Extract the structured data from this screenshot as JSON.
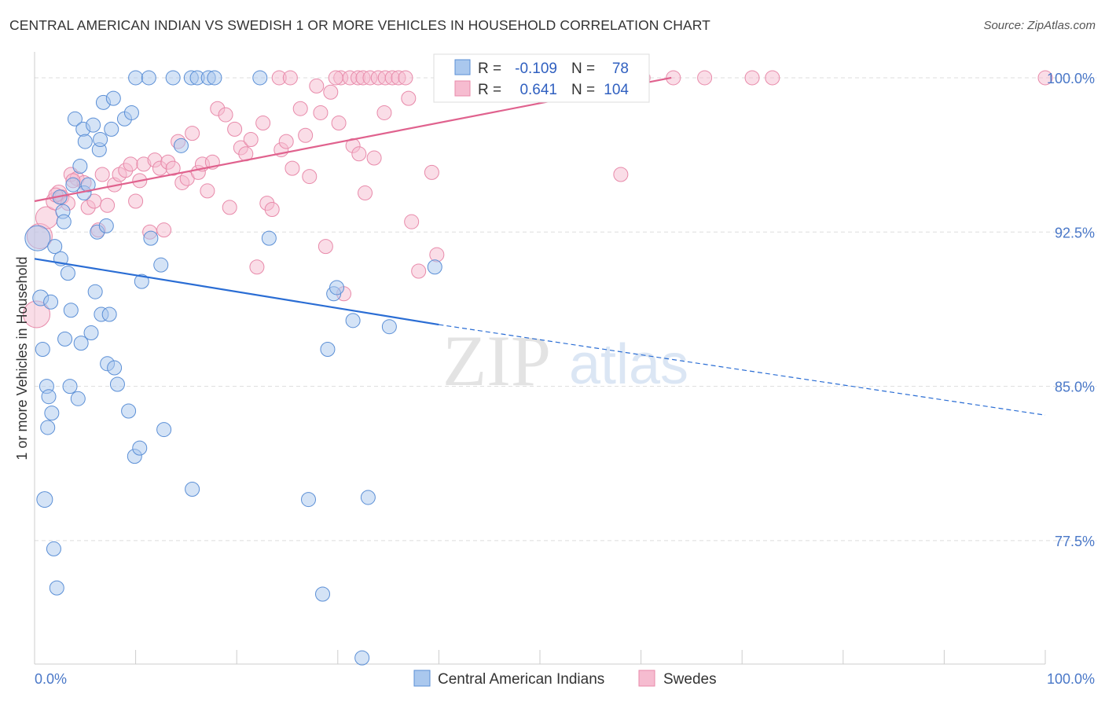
{
  "title": "CENTRAL AMERICAN INDIAN VS SWEDISH 1 OR MORE VEHICLES IN HOUSEHOLD CORRELATION CHART",
  "source": "Source: ZipAtlas.com",
  "watermark": {
    "zip": "ZIP",
    "atlas": "atlas"
  },
  "colors": {
    "blue_fill": "#aac8ee",
    "blue_stroke": "#5b8fd6",
    "blue_line": "#2a6dd4",
    "pink_fill": "#f6bcd0",
    "pink_stroke": "#e88aaa",
    "pink_line": "#e0628e",
    "grid": "#dddddd",
    "tick_text": "#4a78c8"
  },
  "stats_box": {
    "rows": [
      {
        "r_label": "R =",
        "r_value": "-0.109",
        "n_label": "N =",
        "n_value": "78"
      },
      {
        "r_label": "R =",
        "r_value": "0.641",
        "n_label": "N =",
        "n_value": "104"
      }
    ]
  },
  "legend": [
    {
      "label": "Central American Indians"
    },
    {
      "label": "Swedes"
    }
  ],
  "chart_data": {
    "type": "scatter",
    "ylabel": "1 or more Vehicles in Household",
    "xlabel": "",
    "xlim": [
      0,
      100
    ],
    "ylim": [
      71.5,
      100.8
    ],
    "x_tick_labels": {
      "min": "0.0%",
      "max": "100.0%"
    },
    "y_ticks": [
      {
        "value": 100.0,
        "label": "100.0%"
      },
      {
        "value": 92.5,
        "label": "92.5%"
      },
      {
        "value": 85.0,
        "label": "85.0%"
      },
      {
        "value": 77.5,
        "label": "77.5%"
      }
    ],
    "grid": true,
    "legend_position": "bottom-center",
    "series": [
      {
        "name": "Central American Indians",
        "color": "blue",
        "trend": {
          "x": [
            0,
            40
          ],
          "y": [
            91.2,
            88.0
          ],
          "dashed_to": [
            100,
            83.6
          ]
        },
        "points": [
          [
            0.3,
            92.2,
            16
          ],
          [
            0.6,
            89.3,
            10
          ],
          [
            0.8,
            86.8,
            9
          ],
          [
            1.0,
            79.5,
            10
          ],
          [
            1.2,
            85.0,
            9
          ],
          [
            1.3,
            83.0,
            9
          ],
          [
            1.4,
            84.5,
            9
          ],
          [
            1.6,
            89.1,
            9
          ],
          [
            1.7,
            83.7,
            9
          ],
          [
            1.9,
            77.1,
            9
          ],
          [
            2.0,
            91.8,
            9
          ],
          [
            2.2,
            75.2,
            9
          ],
          [
            2.5,
            94.2,
            9
          ],
          [
            2.6,
            91.2,
            9
          ],
          [
            2.8,
            93.5,
            9
          ],
          [
            2.9,
            93.0,
            9
          ],
          [
            3.0,
            87.3,
            9
          ],
          [
            3.3,
            90.5,
            9
          ],
          [
            3.5,
            85.0,
            9
          ],
          [
            3.6,
            88.7,
            9
          ],
          [
            3.8,
            94.8,
            9
          ],
          [
            4.0,
            98.0,
            9
          ],
          [
            4.3,
            84.4,
            9
          ],
          [
            4.5,
            95.7,
            9
          ],
          [
            4.6,
            87.1,
            9
          ],
          [
            4.8,
            97.5,
            9
          ],
          [
            4.9,
            94.4,
            9
          ],
          [
            5.0,
            96.9,
            9
          ],
          [
            5.3,
            94.8,
            9
          ],
          [
            5.6,
            87.6,
            9
          ],
          [
            5.8,
            97.7,
            9
          ],
          [
            6.0,
            89.6,
            9
          ],
          [
            6.2,
            92.5,
            9
          ],
          [
            6.4,
            96.5,
            9
          ],
          [
            6.5,
            97.0,
            9
          ],
          [
            6.6,
            88.5,
            9
          ],
          [
            6.8,
            98.8,
            9
          ],
          [
            7.1,
            92.8,
            9
          ],
          [
            7.2,
            86.1,
            9
          ],
          [
            7.4,
            88.5,
            9
          ],
          [
            7.6,
            97.5,
            9
          ],
          [
            7.8,
            99.0,
            9
          ],
          [
            7.9,
            85.9,
            9
          ],
          [
            8.2,
            85.1,
            9
          ],
          [
            8.9,
            98.0,
            9
          ],
          [
            9.3,
            83.8,
            9
          ],
          [
            9.6,
            98.3,
            9
          ],
          [
            9.9,
            81.6,
            9
          ],
          [
            10.0,
            100.0,
            9
          ],
          [
            10.4,
            82.0,
            9
          ],
          [
            10.6,
            90.1,
            9
          ],
          [
            11.3,
            100.0,
            9
          ],
          [
            11.5,
            92.2,
            9
          ],
          [
            12.5,
            90.9,
            9
          ],
          [
            12.8,
            82.9,
            9
          ],
          [
            13.7,
            100.0,
            9
          ],
          [
            14.5,
            96.7,
            9
          ],
          [
            15.5,
            100.0,
            9
          ],
          [
            15.6,
            80.0,
            9
          ],
          [
            16.1,
            100.0,
            9
          ],
          [
            17.2,
            100.0,
            9
          ],
          [
            17.8,
            100.0,
            9
          ],
          [
            22.3,
            100.0,
            9
          ],
          [
            23.2,
            92.2,
            9
          ],
          [
            27.1,
            79.5,
            9
          ],
          [
            28.5,
            74.9,
            9
          ],
          [
            29.0,
            86.8,
            9
          ],
          [
            29.6,
            89.5,
            9
          ],
          [
            29.9,
            89.8,
            9
          ],
          [
            31.5,
            88.2,
            9
          ],
          [
            32.4,
            71.8,
            9
          ],
          [
            33.0,
            79.6,
            9
          ],
          [
            35.1,
            87.9,
            9
          ],
          [
            39.6,
            90.8,
            9
          ],
          [
            40.5,
            100.0,
            9
          ],
          [
            41.0,
            100.0,
            9
          ],
          [
            41.5,
            100.0,
            9
          ],
          [
            42.0,
            100.0,
            9
          ]
        ]
      },
      {
        "name": "Swedes",
        "color": "pink",
        "trend": {
          "x": [
            0,
            63
          ],
          "y": [
            94.0,
            100.0
          ]
        },
        "points": [
          [
            0.2,
            88.5,
            17
          ],
          [
            0.5,
            92.3,
            16
          ],
          [
            1.2,
            93.2,
            14
          ],
          [
            2.0,
            94.0,
            11
          ],
          [
            2.4,
            94.4,
            10
          ],
          [
            2.7,
            94.2,
            9
          ],
          [
            3.3,
            93.9,
            9
          ],
          [
            3.6,
            95.3,
            9
          ],
          [
            4.2,
            95.1,
            9
          ],
          [
            4.9,
            94.9,
            9
          ],
          [
            5.3,
            93.7,
            9
          ],
          [
            5.9,
            94.0,
            9
          ],
          [
            6.3,
            92.6,
            9
          ],
          [
            6.7,
            95.3,
            9
          ],
          [
            7.2,
            93.8,
            9
          ],
          [
            7.9,
            94.8,
            9
          ],
          [
            8.4,
            95.3,
            9
          ],
          [
            9.0,
            95.5,
            9
          ],
          [
            9.5,
            95.8,
            9
          ],
          [
            10.0,
            94.0,
            9
          ],
          [
            10.4,
            95.0,
            9
          ],
          [
            10.8,
            95.8,
            9
          ],
          [
            11.4,
            92.5,
            9
          ],
          [
            11.9,
            96.0,
            9
          ],
          [
            12.4,
            95.6,
            9
          ],
          [
            12.8,
            92.6,
            9
          ],
          [
            13.2,
            95.9,
            9
          ],
          [
            13.7,
            95.6,
            9
          ],
          [
            14.2,
            96.9,
            9
          ],
          [
            14.6,
            94.9,
            9
          ],
          [
            15.1,
            95.1,
            9
          ],
          [
            15.6,
            97.3,
            9
          ],
          [
            16.2,
            95.4,
            9
          ],
          [
            16.6,
            95.8,
            9
          ],
          [
            17.1,
            94.5,
            9
          ],
          [
            17.6,
            95.9,
            9
          ],
          [
            18.1,
            98.5,
            9
          ],
          [
            18.9,
            98.2,
            9
          ],
          [
            19.3,
            93.7,
            9
          ],
          [
            19.8,
            97.5,
            9
          ],
          [
            20.4,
            96.6,
            9
          ],
          [
            20.9,
            96.3,
            9
          ],
          [
            21.4,
            97.0,
            9
          ],
          [
            22.0,
            90.8,
            9
          ],
          [
            22.6,
            97.8,
            9
          ],
          [
            23.0,
            93.9,
            9
          ],
          [
            23.5,
            93.6,
            9
          ],
          [
            24.4,
            96.5,
            9
          ],
          [
            24.9,
            96.9,
            9
          ],
          [
            25.5,
            95.6,
            9
          ],
          [
            26.3,
            98.5,
            9
          ],
          [
            26.8,
            97.2,
            9
          ],
          [
            27.2,
            95.2,
            9
          ],
          [
            27.9,
            99.6,
            9
          ],
          [
            28.3,
            98.3,
            9
          ],
          [
            28.8,
            91.8,
            9
          ],
          [
            29.3,
            99.3,
            9
          ],
          [
            30.1,
            97.8,
            9
          ],
          [
            30.6,
            89.5,
            9
          ],
          [
            31.5,
            96.7,
            9
          ],
          [
            32.1,
            96.3,
            9
          ],
          [
            32.7,
            94.4,
            9
          ],
          [
            33.6,
            96.1,
            9
          ],
          [
            34.6,
            98.3,
            9
          ],
          [
            37.3,
            93.0,
            9
          ],
          [
            38.0,
            90.6,
            9
          ],
          [
            39.3,
            95.4,
            9
          ],
          [
            39.8,
            91.4,
            9
          ],
          [
            2.1,
            94.3,
            9
          ],
          [
            3.8,
            95.0,
            9
          ],
          [
            24.2,
            100.0,
            9
          ],
          [
            25.3,
            100.0,
            9
          ],
          [
            30.3,
            100.0,
            9
          ],
          [
            31.2,
            100.0,
            9
          ],
          [
            32.0,
            100.0,
            9
          ],
          [
            32.5,
            100.0,
            9
          ],
          [
            33.2,
            100.0,
            9
          ],
          [
            34.0,
            100.0,
            9
          ],
          [
            34.7,
            100.0,
            9
          ],
          [
            35.4,
            100.0,
            9
          ],
          [
            36.0,
            100.0,
            9
          ],
          [
            36.7,
            100.0,
            9
          ],
          [
            40.4,
            100.0,
            9
          ],
          [
            41.2,
            100.0,
            9
          ],
          [
            42.0,
            100.0,
            9
          ],
          [
            42.8,
            100.0,
            9
          ],
          [
            45.5,
            100.0,
            9
          ],
          [
            46.6,
            100.0,
            9
          ],
          [
            48.0,
            100.0,
            9
          ],
          [
            50.1,
            100.0,
            9
          ],
          [
            52.6,
            100.0,
            9
          ],
          [
            54.5,
            100.0,
            9
          ],
          [
            56.0,
            100.0,
            9
          ],
          [
            57.3,
            100.0,
            9
          ],
          [
            58.4,
            100.0,
            9
          ],
          [
            60.2,
            100.0,
            9
          ],
          [
            63.2,
            100.0,
            9
          ],
          [
            66.3,
            100.0,
            9
          ],
          [
            71.0,
            100.0,
            9
          ],
          [
            73.0,
            100.0,
            9
          ],
          [
            58.0,
            95.3,
            9
          ],
          [
            100.0,
            100.0,
            9
          ],
          [
            37.0,
            99.0,
            9
          ],
          [
            29.8,
            100.0,
            9
          ]
        ]
      }
    ]
  }
}
